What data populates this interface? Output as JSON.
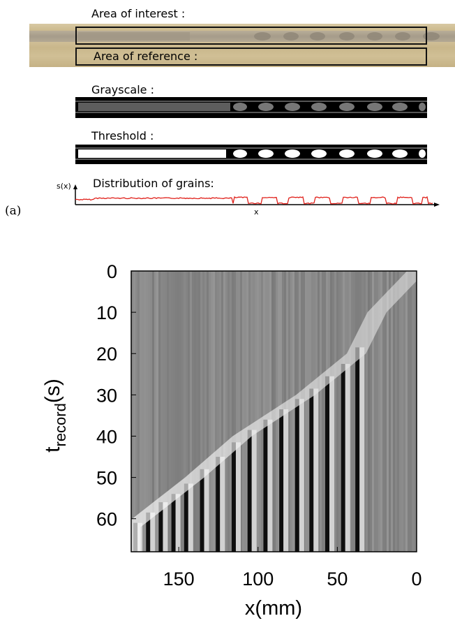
{
  "panel_a": {
    "label": "(a)",
    "area_of_interest": "Area of interest :",
    "area_of_reference": "Area of reference :",
    "grayscale": "Grayscale :",
    "threshold": "Threshold :",
    "distribution": "Distribution of grains:",
    "sx_axis": "s(x)",
    "x_axis": "x"
  },
  "chart_data": {
    "type": "heatmap",
    "title": "",
    "xlabel": "x(mm)",
    "ylabel": "t_record(s)",
    "ylabel_main": "t",
    "ylabel_sub": "record",
    "ylabel_unit": "(s)",
    "xlim": [
      180,
      0
    ],
    "ylim": [
      68,
      0
    ],
    "x_ticks": [
      150,
      100,
      50,
      0
    ],
    "y_ticks": [
      0,
      10,
      20,
      30,
      40,
      50,
      60
    ],
    "front": [
      {
        "t": 0,
        "x": 0
      },
      {
        "t": 10,
        "x": 25
      },
      {
        "t": 20,
        "x": 38
      },
      {
        "t": 30,
        "x": 70
      },
      {
        "t": 40,
        "x": 110
      },
      {
        "t": 50,
        "x": 140
      },
      {
        "t": 62,
        "x": 180
      }
    ],
    "colorscale": "grayscale"
  }
}
